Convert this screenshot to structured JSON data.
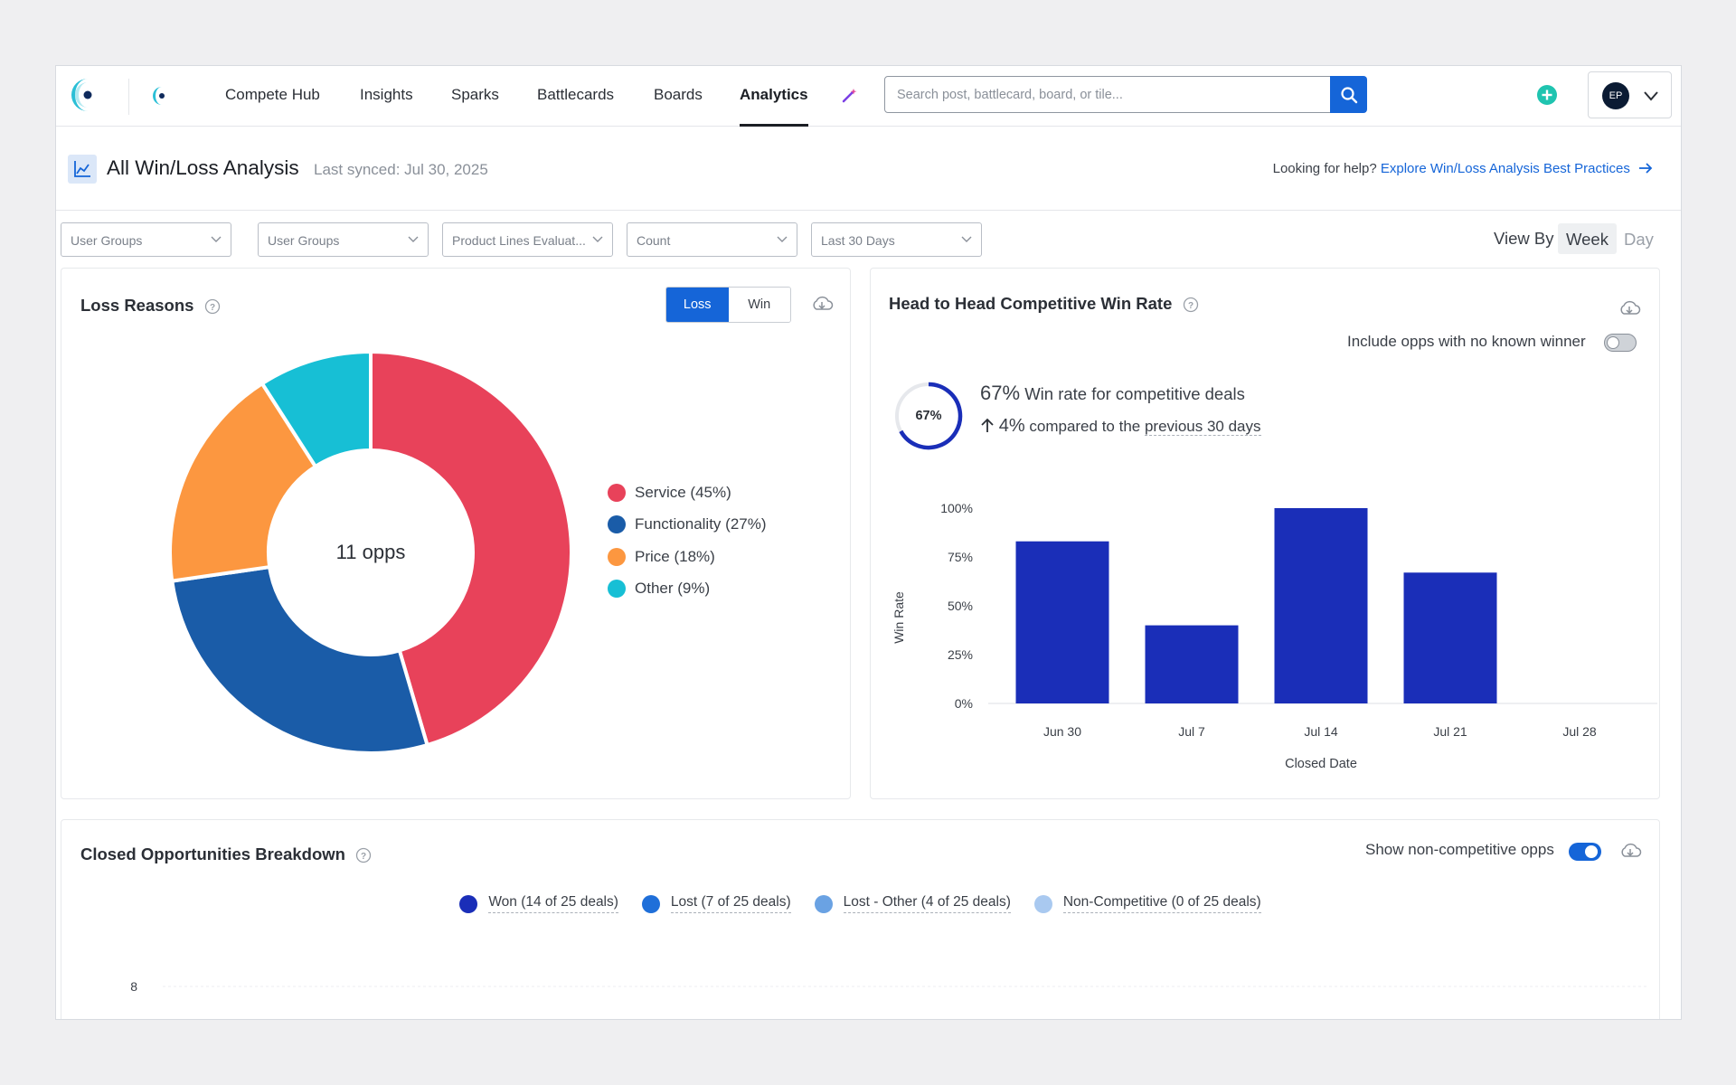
{
  "nav": {
    "items": [
      "Compete Hub",
      "Insights",
      "Sparks",
      "Battlecards",
      "Boards",
      "Analytics"
    ],
    "active": "Analytics",
    "search_placeholder": "Search post, battlecard, board, or tile...",
    "avatar_initials": "EP"
  },
  "header": {
    "title": "All Win/Loss Analysis",
    "last_synced": "Last synced: Jul 30, 2025",
    "help_prefix": "Looking for help?",
    "help_link": "Explore Win/Loss Analysis Best Practices"
  },
  "filters": [
    "User Groups",
    "User Groups",
    "Product Lines Evaluat...",
    "Count",
    "Last 30 Days"
  ],
  "view_by": {
    "label": "View By",
    "options": [
      "Week",
      "Day"
    ],
    "selected": "Week"
  },
  "loss_reasons": {
    "title": "Loss Reasons",
    "toggle": [
      "Loss",
      "Win"
    ],
    "selected": "Loss",
    "center_label": "11 opps",
    "legend": [
      "Service (45%)",
      "Functionality (27%)",
      "Price (18%)",
      "Other (9%)"
    ]
  },
  "head_to_head": {
    "title": "Head to Head Competitive Win Rate",
    "include_label": "Include opps with no known winner",
    "include_enabled": false,
    "ring_label": "67%",
    "ring_value": 0.67,
    "win_rate_pct": "67%",
    "win_rate_text": "Win rate for competitive deals",
    "change_value": "4%",
    "change_text_prefix": "compared to the",
    "change_text_link": "previous 30 days"
  },
  "closed_opps": {
    "title": "Closed Opportunities Breakdown",
    "show_label": "Show non-competitive opps",
    "show_enabled": true,
    "legend": [
      "Won (14 of 25 deals)",
      "Lost (7 of 25 deals)",
      "Lost - Other (4 of 25 deals)",
      "Non-Competitive (0 of 25 deals)"
    ],
    "y_tick": "8"
  },
  "colors": {
    "accent": "#1565d8",
    "service": "#e8425a",
    "functionality": "#1a5ca8",
    "price": "#fc9740",
    "other": "#17bfd5",
    "bar": "#1a2eb8",
    "won": "#1a2eb8",
    "lost": "#1f6fd9",
    "lost_other": "#6aa2e3",
    "non_competitive": "#a9c9f0"
  },
  "chart_data": [
    {
      "type": "pie",
      "title": "Loss Reasons",
      "categories": [
        "Service",
        "Functionality",
        "Price",
        "Other"
      ],
      "values": [
        45,
        27,
        18,
        9
      ],
      "colors": [
        "#e8425a",
        "#1a5ca8",
        "#fc9740",
        "#17bfd5"
      ],
      "legend": "right"
    },
    {
      "type": "bar",
      "title": "Head to Head Competitive Win Rate",
      "xlabel": "Closed Date",
      "ylabel": "Win Rate",
      "categories": [
        "Jun 30",
        "Jul 7",
        "Jul 14",
        "Jul 21",
        "Jul 28"
      ],
      "values": [
        83,
        40,
        100,
        67,
        null
      ],
      "ylim": [
        0,
        100
      ],
      "yticks": [
        "0%",
        "25%",
        "50%",
        "75%",
        "100%"
      ],
      "grid": false
    }
  ]
}
